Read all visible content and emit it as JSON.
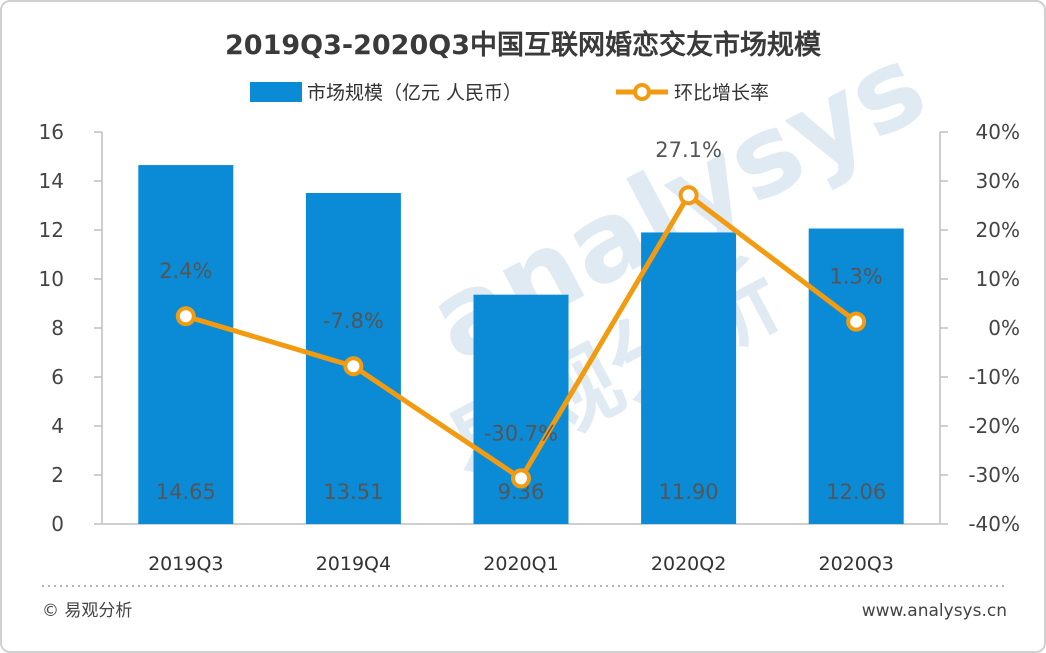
{
  "chart_data": {
    "type": "bar",
    "title": "2019Q3-2020Q3中国互联网婚恋交友市场规模",
    "categories": [
      "2019Q3",
      "2019Q4",
      "2020Q1",
      "2020Q2",
      "2020Q3"
    ],
    "series": [
      {
        "name": "市场规模（亿元 人民币）",
        "type": "bar",
        "axis": "left",
        "values": [
          14.65,
          13.51,
          9.36,
          11.9,
          12.06
        ],
        "labels": [
          "14.65",
          "13.51",
          "9.36",
          "11.90",
          "12.06"
        ],
        "color": "#0b8ad6"
      },
      {
        "name": "环比增长率",
        "type": "line",
        "axis": "right",
        "values": [
          2.4,
          -7.8,
          -30.7,
          27.1,
          1.3
        ],
        "labels": [
          "2.4%",
          "-7.8%",
          "-30.7%",
          "27.1%",
          "1.3%"
        ],
        "color": "#f29b11"
      }
    ],
    "y_left": {
      "ylim": [
        0,
        16
      ],
      "ticks": [
        "0",
        "2",
        "4",
        "6",
        "8",
        "10",
        "12",
        "14",
        "16"
      ]
    },
    "y_right": {
      "ylim": [
        -40,
        40
      ],
      "ticks": [
        "-40%",
        "-30%",
        "-20%",
        "-10%",
        "0%",
        "10%",
        "20%",
        "30%",
        "40%"
      ]
    },
    "grid": false,
    "legend_position": "top-center"
  },
  "watermark": {
    "text": "analysys",
    "cn": "易观分析"
  },
  "footer": {
    "left": "© 易观分析",
    "right": "www.analysys.cn"
  }
}
